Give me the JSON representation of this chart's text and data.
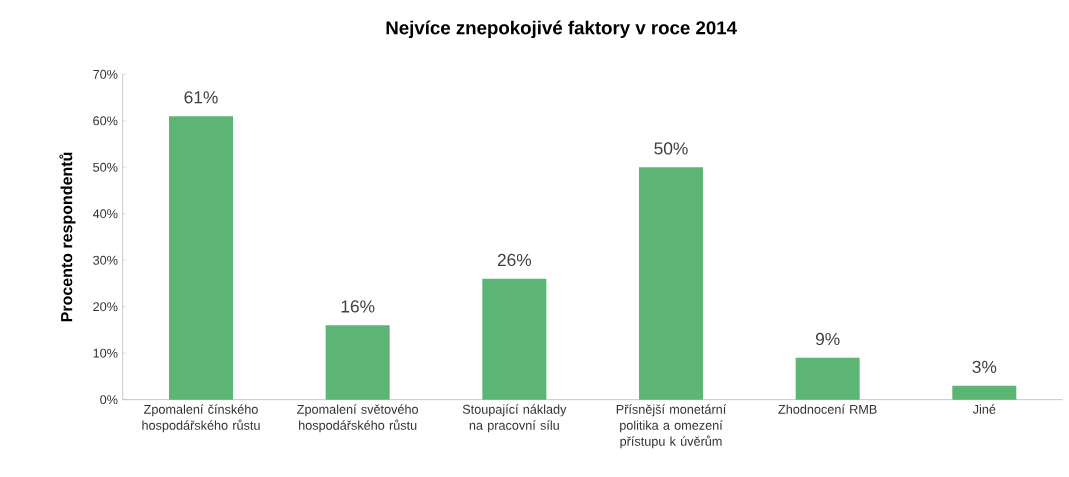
{
  "chart_data": {
    "type": "bar",
    "title": "Nejvíce znepokojivé faktory v roce 2014",
    "ylabel": "Procento respondentů",
    "categories": [
      "Zpomalení čínského hospodářského růstu",
      "Zpomalení světového hospodářského růstu",
      "Stoupající náklady na pracovní sílu",
      "Přísnější monetární politika a omezení přístupu k úvěrům",
      "Zhodnocení RMB",
      "Jiné"
    ],
    "values": [
      61,
      16,
      26,
      50,
      9,
      3
    ],
    "value_labels": [
      "61%",
      "16%",
      "26%",
      "50%",
      "9%",
      "3%"
    ],
    "color": "#5cb574",
    "ylim": [
      0,
      70
    ],
    "yticks": [
      {
        "value": 0,
        "label": "0%"
      },
      {
        "value": 10,
        "label": "10%"
      },
      {
        "value": 20,
        "label": "20%"
      },
      {
        "value": 30,
        "label": "30%"
      },
      {
        "value": 40,
        "label": "40%"
      },
      {
        "value": 50,
        "label": "50%"
      },
      {
        "value": 60,
        "label": "60%"
      },
      {
        "value": 70,
        "label": "70%"
      }
    ]
  }
}
